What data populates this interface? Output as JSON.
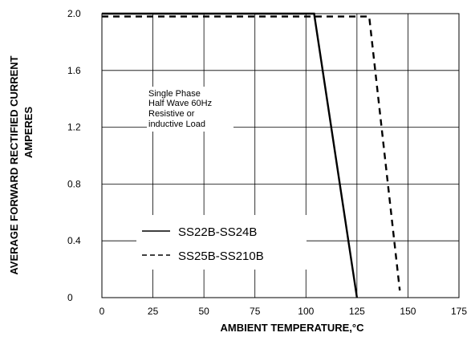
{
  "chart_data": {
    "type": "line",
    "xlabel": "AMBIENT TEMPERATURE,°C",
    "ylabel_lines": [
      "AVERAGE FORWARD RECTIFIED CURRENT",
      "AMPERES"
    ],
    "xlim": [
      0,
      175
    ],
    "ylim": [
      0,
      2.0
    ],
    "x_ticks": [
      "0",
      "25",
      "50",
      "75",
      "100",
      "125",
      "150",
      "175"
    ],
    "y_ticks": [
      "0",
      "0.4",
      "0.8",
      "1.2",
      "1.6",
      "2.0"
    ],
    "grid": true,
    "annotation_lines": [
      "Single Phase",
      "Half Wave 60Hz",
      "Resistive or",
      "inductive Load"
    ],
    "series": [
      {
        "name": "SS22B-SS24B",
        "style": "solid",
        "color": "#000000",
        "x": [
          0,
          104,
          125
        ],
        "y": [
          2.0,
          2.0,
          0
        ]
      },
      {
        "name": "SS25B-SS210B",
        "style": "dashed",
        "color": "#000000",
        "x": [
          0,
          131,
          146
        ],
        "y": [
          1.98,
          1.98,
          0.05
        ]
      }
    ]
  }
}
